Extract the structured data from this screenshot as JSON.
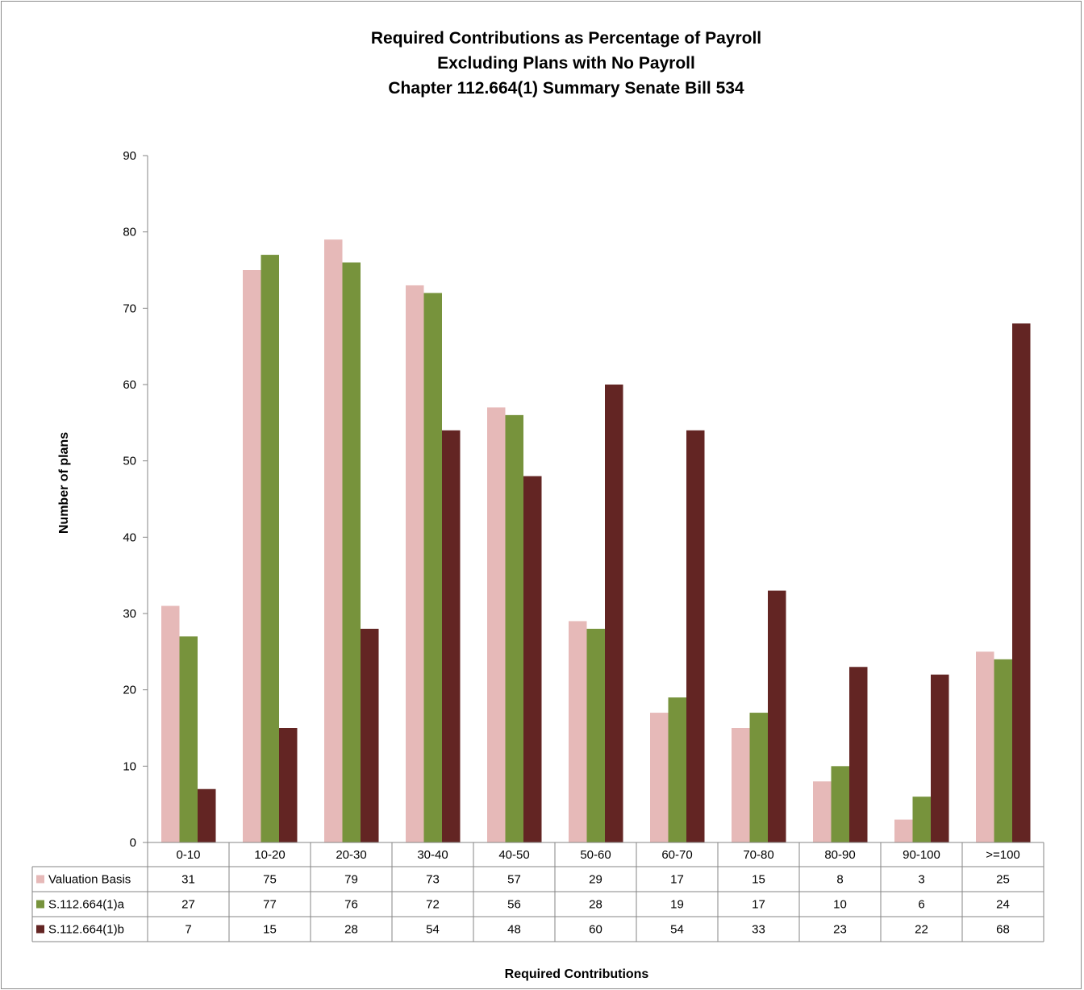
{
  "chart_data": {
    "type": "bar",
    "title": [
      "Required Contributions as Percentage of Payroll",
      "Excluding Plans with No Payroll",
      "Chapter 112.664(1) Summary Senate Bill 534"
    ],
    "xlabel": "Required Contributions",
    "ylabel": "Number of plans",
    "ylim": [
      0,
      90
    ],
    "yticks": [
      0,
      10,
      20,
      30,
      40,
      50,
      60,
      70,
      80,
      90
    ],
    "grid": false,
    "legend": "data-table",
    "categories": [
      "0-10",
      "10-20",
      "20-30",
      "30-40",
      "40-50",
      "50-60",
      "60-70",
      "70-80",
      "80-90",
      "90-100",
      ">=100"
    ],
    "series": [
      {
        "name": "Valuation Basis",
        "color": "#e6b9b8",
        "values": [
          31,
          75,
          79,
          73,
          57,
          29,
          17,
          15,
          8,
          3,
          25
        ]
      },
      {
        "name": "S.112.664(1)a",
        "color": "#77933c",
        "values": [
          27,
          77,
          76,
          72,
          56,
          28,
          19,
          17,
          10,
          6,
          24
        ]
      },
      {
        "name": "S.112.664(1)b",
        "color": "#632523",
        "values": [
          7,
          15,
          28,
          54,
          48,
          60,
          54,
          33,
          23,
          22,
          68
        ]
      }
    ]
  }
}
